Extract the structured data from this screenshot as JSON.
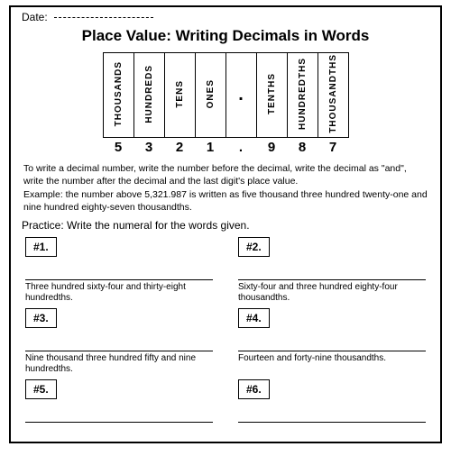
{
  "header": {
    "date_label": "Date:"
  },
  "title": "Place Value: Writing Decimals in Words",
  "place_value": {
    "columns": [
      "THOUSANDS",
      "HUNDREDS",
      "TENS",
      "ONES",
      ".",
      "TENTHS",
      "HUNDREDTHS",
      "THOUSANDTHS"
    ],
    "digits": [
      "5",
      "3",
      "2",
      "1",
      ".",
      "9",
      "8",
      "7"
    ]
  },
  "explain": {
    "line1": "To write a decimal number, write the number before the decimal, write the decimal as \"and\", write the number after the decimal and the last digit's place value.",
    "line2": "Example: the number above 5,321.987 is written as five thousand three hundred twenty-one and nine hundred eighty-seven thousandths."
  },
  "practice_label": "Practice: Write the numeral for the words given.",
  "questions": [
    {
      "num": "#1.",
      "words": "Three hundred sixty-four and thirty-eight hundredths."
    },
    {
      "num": "#2.",
      "words": "Sixty-four and three hundred eighty-four thousandths."
    },
    {
      "num": "#3.",
      "words": "Nine thousand three hundred fifty and nine hundredths."
    },
    {
      "num": "#4.",
      "words": "Fourteen and forty-nine thousandths."
    },
    {
      "num": "#5.",
      "words": ""
    },
    {
      "num": "#6.",
      "words": ""
    }
  ],
  "style": {
    "border_color": "#000000",
    "background_color": "#ffffff",
    "font_family": "Comic Sans MS"
  }
}
